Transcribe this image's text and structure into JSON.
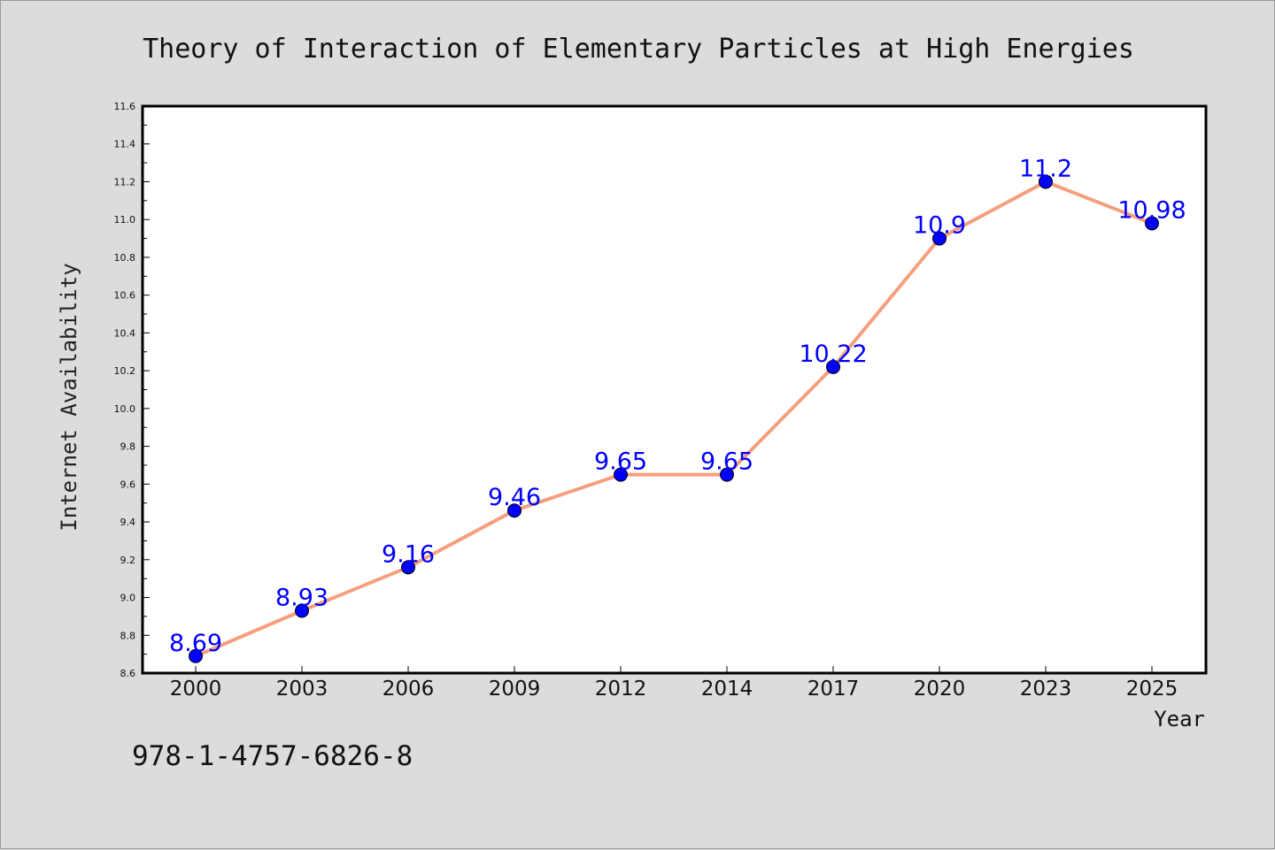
{
  "chart_data": {
    "type": "line",
    "title": "Theory of Interaction of Elementary Particles at High Energies",
    "xlabel": "Year",
    "ylabel": "Internet Availability",
    "categories": [
      "2000",
      "2003",
      "2006",
      "2009",
      "2012",
      "2014",
      "2017",
      "2020",
      "2023",
      "2025"
    ],
    "series": [
      {
        "values": [
          8.69,
          8.93,
          9.16,
          9.46,
          9.65,
          9.65,
          10.22,
          10.9,
          11.2,
          10.98
        ],
        "labels": [
          "8.69",
          "8.93",
          "9.16",
          "9.46",
          "9.65",
          "9.65",
          "10.22",
          "10.9",
          "11.2",
          "10.98"
        ]
      }
    ],
    "ylim": [
      8.6,
      11.6
    ],
    "yticks": [
      "8.6",
      "8.8",
      "9.0",
      "9.2",
      "9.4",
      "9.6",
      "9.8",
      "10.0",
      "10.2",
      "10.4",
      "10.6",
      "10.8",
      "11.0",
      "11.2",
      "11.4",
      "11.6"
    ],
    "grid": false,
    "line_color": "#f4a07e",
    "marker_color": "#0000ff",
    "label_color": "#0000ff"
  },
  "footer": {
    "isbn": "978-1-4757-6826-8"
  }
}
